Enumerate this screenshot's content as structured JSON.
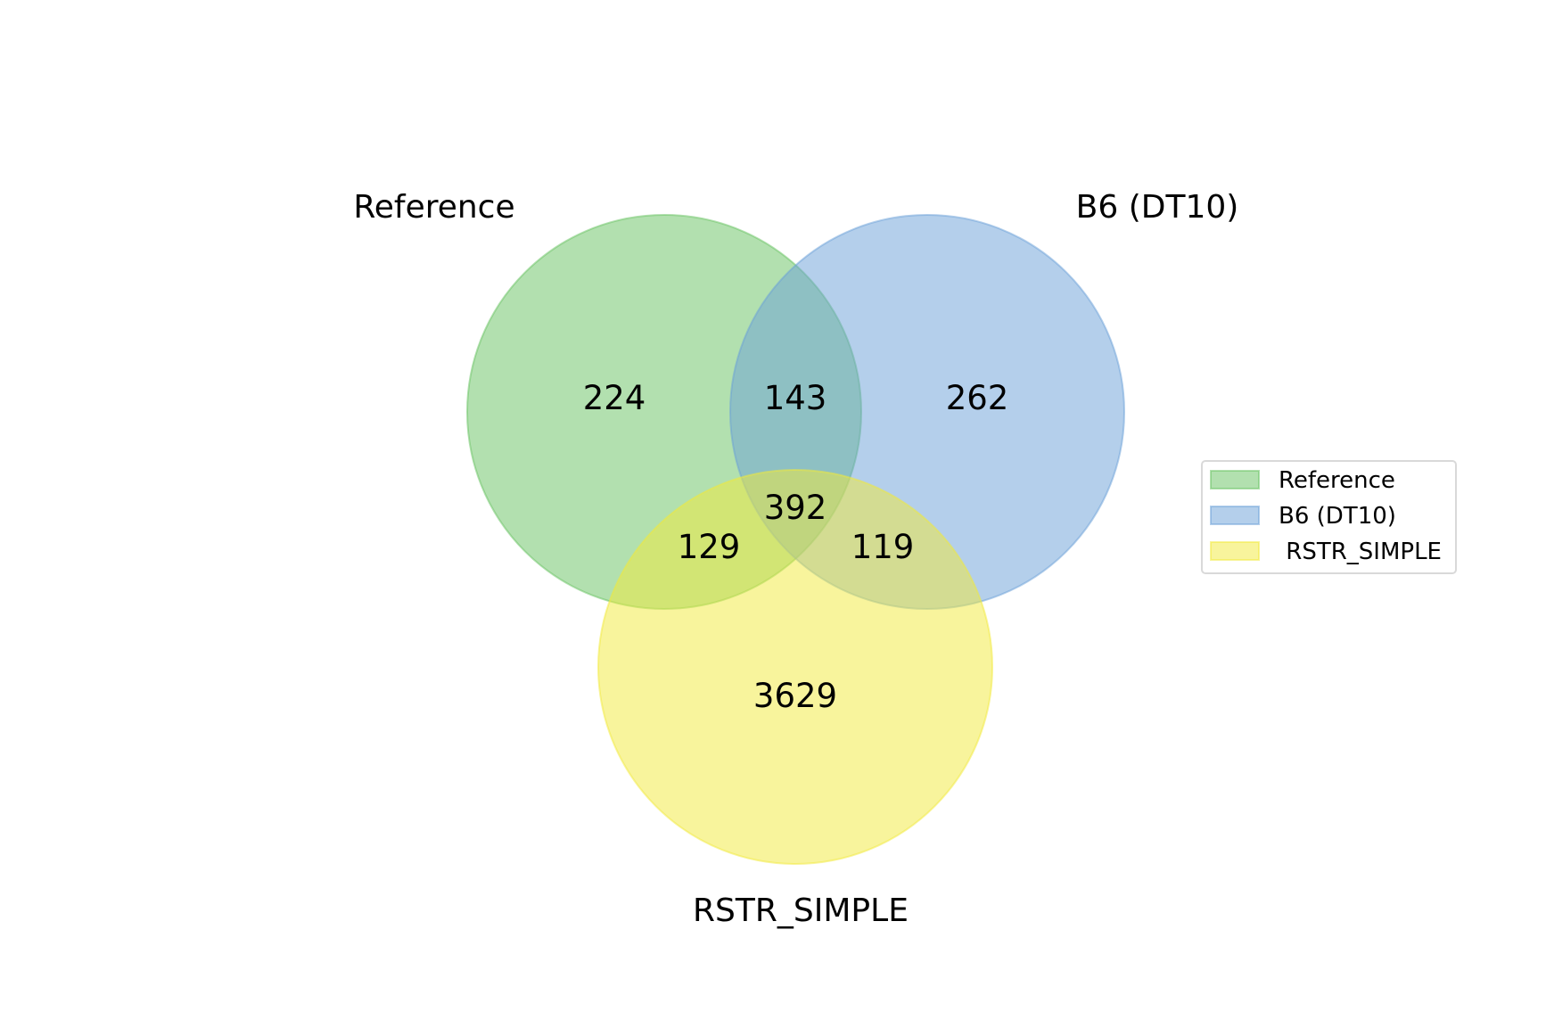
{
  "chart_data": {
    "type": "venn",
    "sets": [
      {
        "key": "A",
        "name": "Reference",
        "color": "#66c25f",
        "edge": "#66c25f"
      },
      {
        "key": "B",
        "name": "B6 (DT10)",
        "color": "#6a9fd8",
        "edge": "#6a9fd8"
      },
      {
        "key": "C",
        "name": "RSTR_SIMPLE",
        "color": "#f2e93a",
        "edge": "#f2e93a"
      }
    ],
    "regions": [
      {
        "sets": [
          "A"
        ],
        "value": "224"
      },
      {
        "sets": [
          "A",
          "B"
        ],
        "value": "143"
      },
      {
        "sets": [
          "B"
        ],
        "value": "262"
      },
      {
        "sets": [
          "A",
          "B",
          "C"
        ],
        "value": "392"
      },
      {
        "sets": [
          "A",
          "C"
        ],
        "value": "129"
      },
      {
        "sets": [
          "B",
          "C"
        ],
        "value": "119"
      },
      {
        "sets": [
          "C"
        ],
        "value": "3629"
      }
    ],
    "legend": {
      "placement": "right",
      "entries": [
        "Reference",
        "B6 (DT10)",
        " RSTR_SIMPLE"
      ]
    }
  }
}
